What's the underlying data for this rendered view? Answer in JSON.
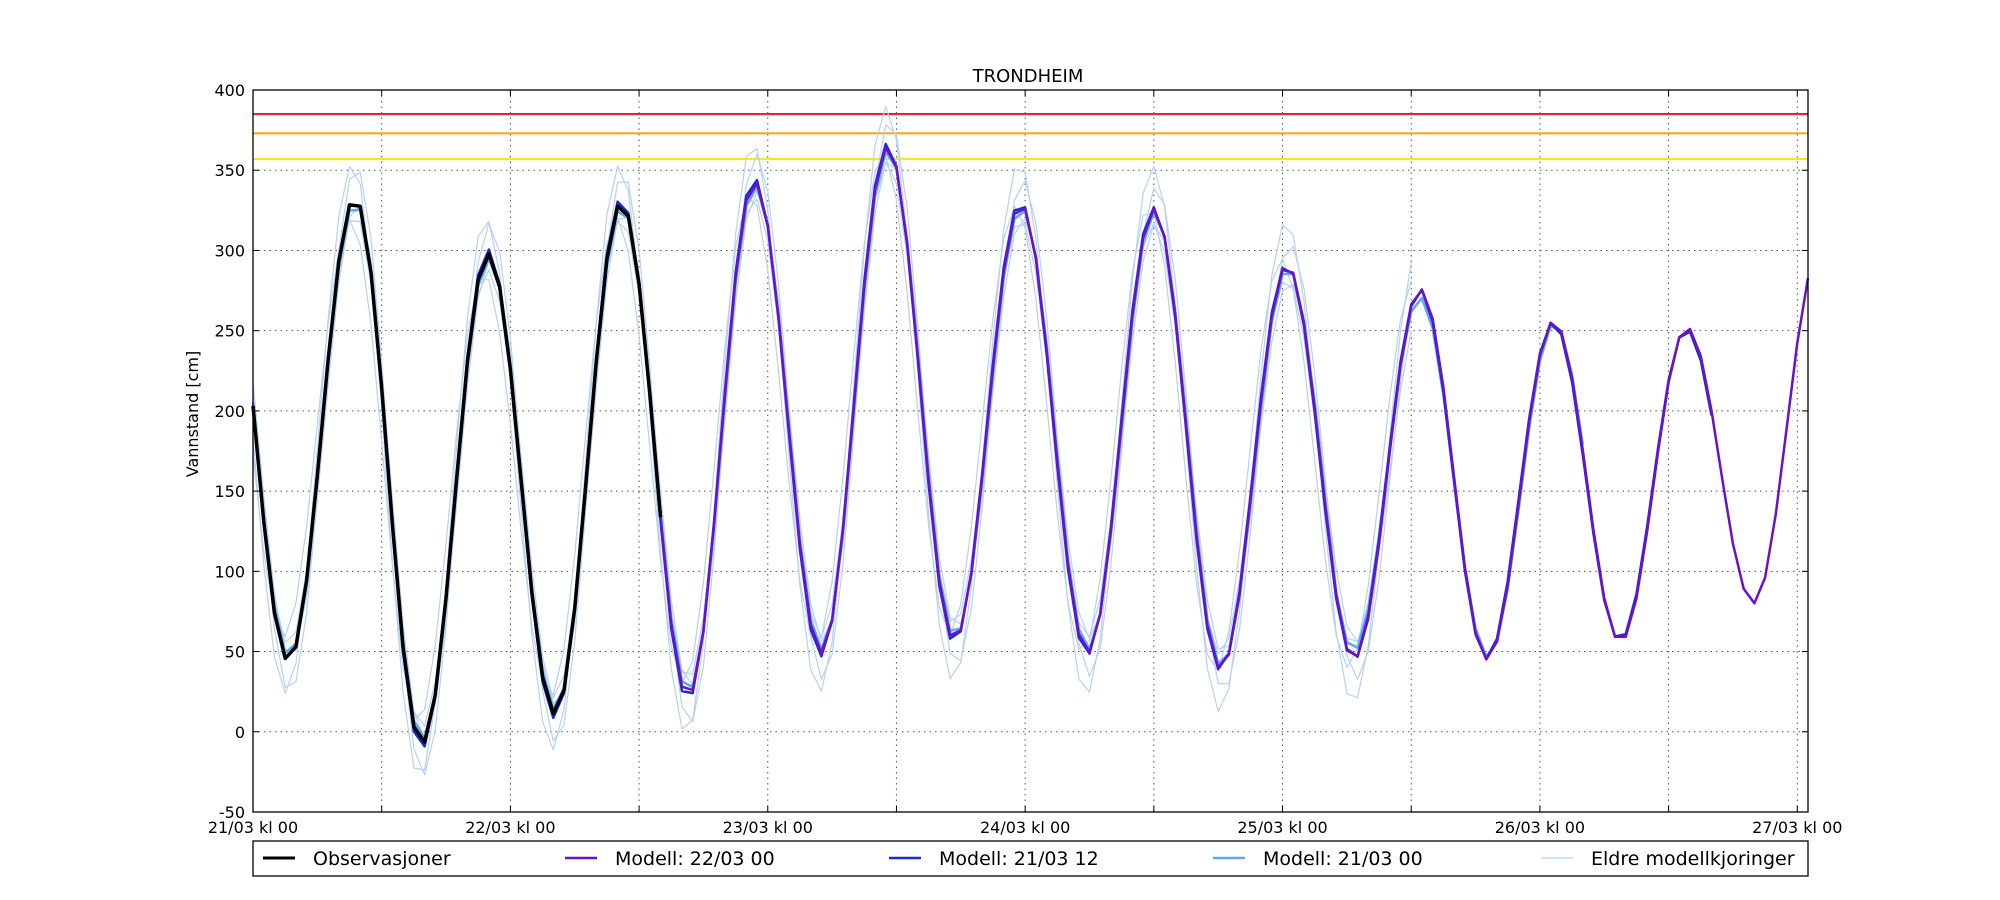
{
  "chart_data": {
    "type": "line",
    "title": "TRONDHEIM",
    "xlabel": "",
    "ylabel": "Vannstand [cm]",
    "ylim": [
      -50,
      400
    ],
    "xlim": [
      0,
      145
    ],
    "x_unit": "hours since 21/03 kl 00",
    "y_ticks": [
      -50,
      0,
      50,
      100,
      150,
      200,
      250,
      300,
      350,
      400
    ],
    "x_ticks": [
      0,
      12,
      24,
      36,
      48,
      60,
      72,
      84,
      96,
      108,
      120,
      132,
      144
    ],
    "x_tick_labels": [
      {
        "x": 0,
        "label": "21/03 kl 00"
      },
      {
        "x": 24,
        "label": "22/03 kl 00"
      },
      {
        "x": 48,
        "label": "23/03 kl 00"
      },
      {
        "x": 72,
        "label": "24/03 kl 00"
      },
      {
        "x": 96,
        "label": "25/03 kl 00"
      },
      {
        "x": 120,
        "label": "26/03 kl 00"
      },
      {
        "x": 144,
        "label": "27/03 kl 00"
      }
    ],
    "grid": true,
    "legend_position": "bottom",
    "thresholds": [
      {
        "value": 385,
        "color": "#e8242c"
      },
      {
        "value": 373,
        "color": "#f5a623"
      },
      {
        "value": 357,
        "color": "#f5e820"
      }
    ],
    "peaks": [
      333,
      298,
      330,
      343,
      365,
      329,
      326,
      291,
      276,
      256,
      252
    ],
    "troughs": [
      44,
      -8,
      11,
      22,
      49,
      57,
      49,
      39,
      45,
      45,
      56,
      80
    ],
    "series": [
      {
        "name": "Eldre modellkjoringer",
        "color": "#b8d0f0",
        "width": 1.2,
        "start": 0,
        "end": 108,
        "variant": "older"
      },
      {
        "name": "Modell: 21/03 00",
        "color": "#5aa9f0",
        "width": 2.5,
        "start": 0,
        "end": 124,
        "variant": "m0000"
      },
      {
        "name": "Modell: 21/03 12",
        "color": "#1a2cd6",
        "width": 2.5,
        "start": 12,
        "end": 136,
        "variant": "m2112"
      },
      {
        "name": "Modell: 22/03 00",
        "color": "#6a12c8",
        "width": 2.5,
        "start": 24,
        "end": 145,
        "variant": "m2200"
      },
      {
        "name": "Observasjoner",
        "color": "#000000",
        "width": 3.5,
        "start": 0,
        "end": 38.3,
        "variant": "obs"
      }
    ],
    "legend": [
      {
        "label": "Observasjoner",
        "color": "#000000"
      },
      {
        "label": "Modell: 22/03 00",
        "color": "#6a12c8"
      },
      {
        "label": "Modell: 21/03 12",
        "color": "#1a2cd6"
      },
      {
        "label": "Modell: 21/03 00",
        "color": "#5aa9f0"
      },
      {
        "label": "Eldre modellkjoringer",
        "color": "#b8d0f0"
      }
    ]
  }
}
